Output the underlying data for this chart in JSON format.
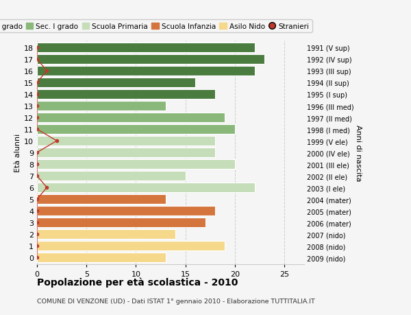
{
  "ages": [
    18,
    17,
    16,
    15,
    14,
    13,
    12,
    11,
    10,
    9,
    8,
    7,
    6,
    5,
    4,
    3,
    2,
    1,
    0
  ],
  "years": [
    "1991 (V sup)",
    "1992 (IV sup)",
    "1993 (III sup)",
    "1994 (II sup)",
    "1995 (I sup)",
    "1996 (III med)",
    "1997 (II med)",
    "1998 (I med)",
    "1999 (V ele)",
    "2000 (IV ele)",
    "2001 (III ele)",
    "2002 (II ele)",
    "2003 (I ele)",
    "2004 (mater)",
    "2005 (mater)",
    "2006 (mater)",
    "2007 (nido)",
    "2008 (nido)",
    "2009 (nido)"
  ],
  "values": [
    22,
    23,
    22,
    16,
    18,
    13,
    19,
    20,
    18,
    18,
    20,
    15,
    22,
    13,
    18,
    17,
    14,
    19,
    13
  ],
  "stranieri": [
    0,
    0,
    1,
    0,
    0,
    0,
    0,
    0,
    2,
    0,
    0,
    0,
    1,
    0,
    0,
    0,
    0,
    0,
    0
  ],
  "bar_colors": [
    "#4a7c3f",
    "#4a7c3f",
    "#4a7c3f",
    "#4a7c3f",
    "#4a7c3f",
    "#8ab87a",
    "#8ab87a",
    "#8ab87a",
    "#c5ddb8",
    "#c5ddb8",
    "#c5ddb8",
    "#c5ddb8",
    "#c5ddb8",
    "#d4753e",
    "#d4753e",
    "#d4753e",
    "#f5d88a",
    "#f5d88a",
    "#f5d88a"
  ],
  "legend_labels": [
    "Sec. II grado",
    "Sec. I grado",
    "Scuola Primaria",
    "Scuola Infanzia",
    "Asilo Nido",
    "Stranieri"
  ],
  "legend_colors": [
    "#4a7c3f",
    "#8ab87a",
    "#c5ddb8",
    "#d4753e",
    "#f5d88a",
    "#c0392b"
  ],
  "stranieri_color": "#c0392b",
  "title": "Popolazione per età scolastica - 2010",
  "subtitle": "COMUNE DI VENZONE (UD) - Dati ISTAT 1° gennaio 2010 - Elaborazione TUTTITALIA.IT",
  "ylabel_left": "Età alunni",
  "ylabel_right": "Anni di nascita",
  "bg_color": "#f5f5f5",
  "grid_color": "#cccccc",
  "bar_height": 0.8,
  "xlim": [
    0,
    27
  ],
  "figsize": [
    6.0,
    4.6
  ],
  "dpi": 100
}
